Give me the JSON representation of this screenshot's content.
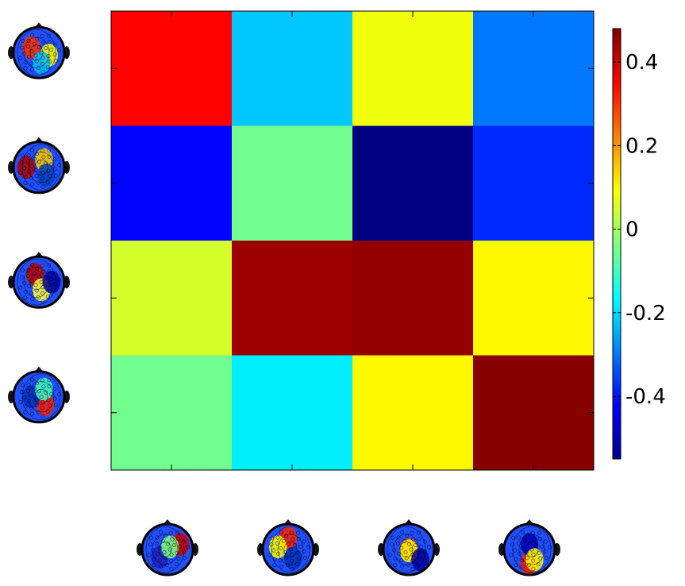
{
  "chart_data": {
    "type": "heatmap",
    "title": "",
    "xlabel": "",
    "ylabel": "",
    "rows": 4,
    "cols": 4,
    "values": [
      [
        0.35,
        -0.22,
        0.08,
        -0.3
      ],
      [
        -0.42,
        -0.05,
        -0.55,
        -0.38
      ],
      [
        0.05,
        0.45,
        0.46,
        0.1
      ],
      [
        -0.05,
        -0.18,
        0.1,
        0.47
      ]
    ],
    "colorbar": {
      "min": -0.55,
      "max": 0.48,
      "ticks": [
        0.4,
        0.2,
        0,
        -0.2,
        -0.4
      ],
      "tick_labels": [
        "0.4",
        "0.2",
        "0",
        "-0.2",
        "-0.4"
      ],
      "colormap": "jet"
    },
    "grid": false,
    "row_topomaps": [
      "topomap-head-icon",
      "topomap-head-icon",
      "topomap-head-icon",
      "topomap-head-icon"
    ],
    "col_topomaps": [
      "topomap-head-icon",
      "topomap-head-icon",
      "topomap-head-icon",
      "topomap-head-icon"
    ]
  },
  "colors": {
    "frame": "#000000",
    "background": "#ffffff"
  }
}
